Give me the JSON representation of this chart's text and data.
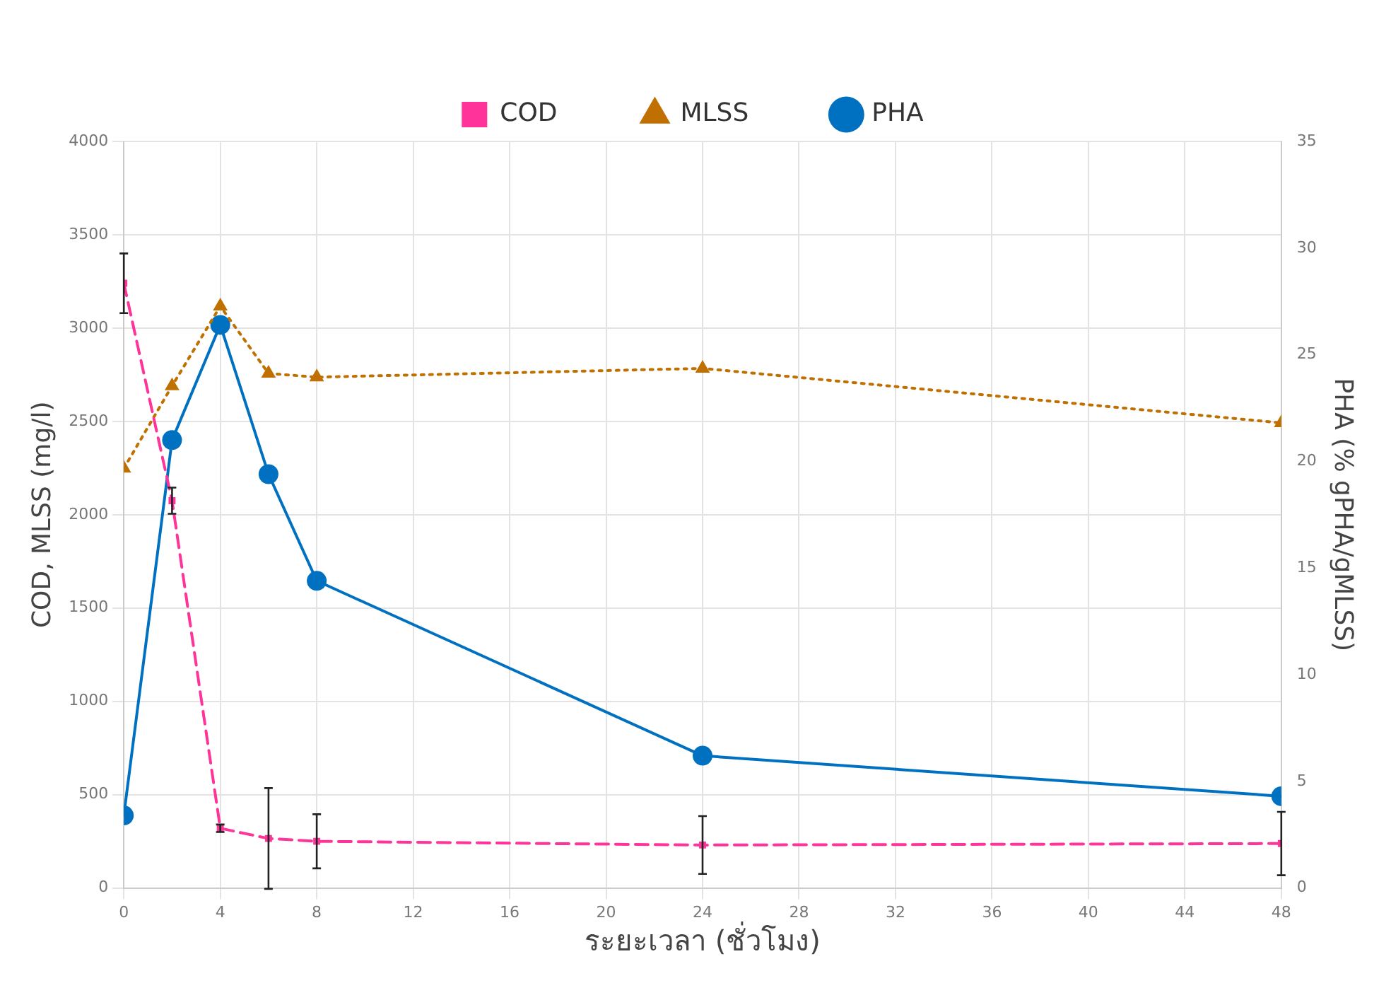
{
  "chart_data": {
    "type": "line",
    "xlabel": "ระยะเวลา (ชั่วโมง)",
    "ylabel": "COD, MLSS (mg/l)",
    "y2label": "PHA (% gPHA/gMLSS)",
    "x": [
      0,
      2,
      4,
      6,
      8,
      24,
      48
    ],
    "xlim": [
      0,
      48
    ],
    "xticks": [
      0,
      4,
      8,
      12,
      16,
      20,
      24,
      28,
      32,
      36,
      40,
      44,
      48
    ],
    "ylim": [
      0,
      4000
    ],
    "yticks": [
      0,
      500,
      1000,
      1500,
      2000,
      2500,
      3000,
      3500,
      4000
    ],
    "y2lim": [
      0,
      35
    ],
    "y2ticks": [
      0,
      5,
      10,
      15,
      20,
      25,
      30,
      35
    ],
    "grid": true,
    "legend": "top",
    "series": [
      {
        "name": "COD",
        "color": "#ff3399",
        "marker": "square",
        "line_style": "dashed",
        "values": [
          3240,
          2075,
          320,
          265,
          250,
          230,
          238
        ],
        "errors": [
          160,
          70,
          20,
          270,
          145,
          155,
          170
        ]
      },
      {
        "name": "MLSS",
        "color": "#c07000",
        "marker": "triangle",
        "line_style": "dotted",
        "values": [
          2248,
          2690,
          3117,
          2757,
          2737,
          2784,
          2492
        ]
      },
      {
        "name": "PHA",
        "color": "#0070c0",
        "marker": "circle",
        "line_style": "solid",
        "axis": "y2",
        "values": [
          3.4,
          21.0,
          26.4,
          19.4,
          14.4,
          6.2,
          4.3
        ]
      }
    ]
  }
}
